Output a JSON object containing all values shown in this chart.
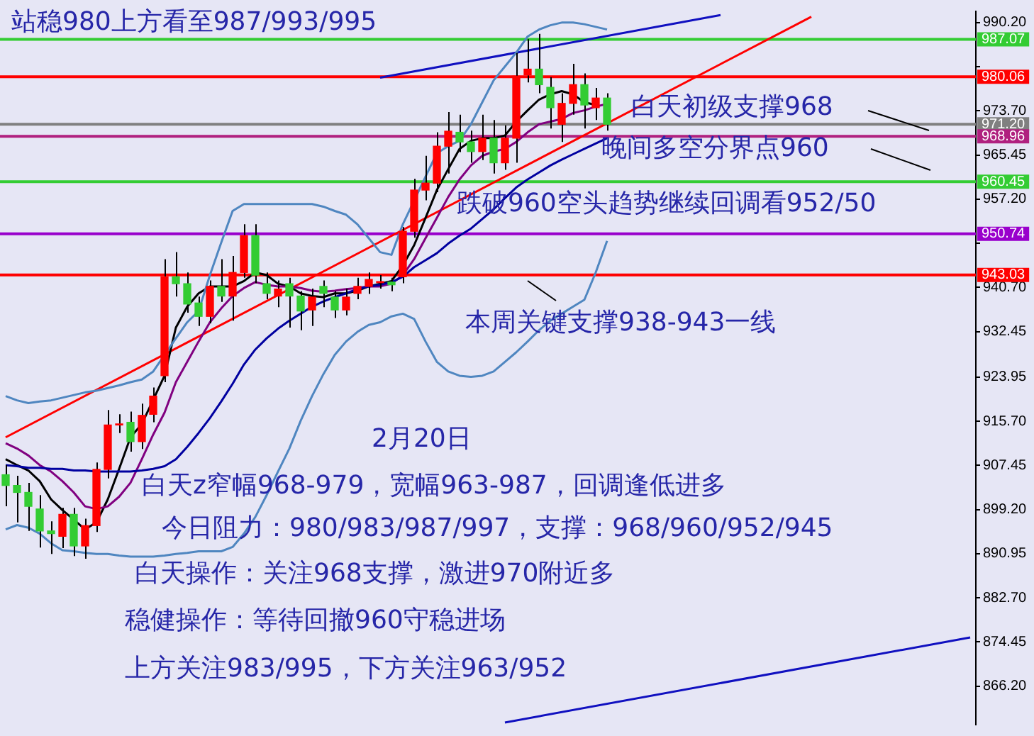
{
  "chart_data": {
    "type": "candlestick",
    "categories": [
      null,
      null,
      null,
      null,
      null,
      null,
      null,
      null,
      null,
      null,
      null,
      null,
      null,
      null,
      null,
      null,
      null,
      null,
      null,
      null,
      null,
      null,
      null,
      null,
      null,
      null,
      null,
      null,
      null,
      null,
      null,
      null,
      null,
      null,
      null,
      null,
      null,
      null,
      null,
      null,
      null,
      null,
      null,
      null,
      null,
      null,
      null,
      null,
      null,
      null,
      null,
      null,
      null,
      null,
      null,
      null,
      null,
      null,
      null,
      null,
      null,
      null,
      null,
      null,
      null,
      null,
      null,
      null,
      null,
      null,
      null,
      null,
      null,
      null,
      null,
      null,
      null,
      null,
      null,
      null,
      null,
      null,
      null,
      null,
      null,
      null
    ],
    "ohlc": [
      [
        905.7,
        907.5,
        899.8,
        903.7
      ],
      [
        903.7,
        905.5,
        896.8,
        902.4
      ],
      [
        902.4,
        904.2,
        895.2,
        899.8
      ],
      [
        899.3,
        901.9,
        892.1,
        895.2
      ],
      [
        895.2,
        897.0,
        890.9,
        894.7
      ],
      [
        894.2,
        899.5,
        892.0,
        898.3
      ],
      [
        898.3,
        899.5,
        890.5,
        892.4
      ],
      [
        892.4,
        897.5,
        890.0,
        896.2
      ],
      [
        896.2,
        908.0,
        895.0,
        906.7
      ],
      [
        906.7,
        917.8,
        905.0,
        915.0
      ],
      [
        915.0,
        917.0,
        913.5,
        915.2
      ],
      [
        915.5,
        917.5,
        910.0,
        911.9
      ],
      [
        911.9,
        919.0,
        910.5,
        916.8
      ],
      [
        917.0,
        922.0,
        915.5,
        920.4
      ],
      [
        924.2,
        946.0,
        923.0,
        942.7
      ],
      [
        942.7,
        947.3,
        939.0,
        941.4
      ],
      [
        941.4,
        943.5,
        936.0,
        937.6
      ],
      [
        937.8,
        939.0,
        933.5,
        935.3
      ],
      [
        935.3,
        942.0,
        934.0,
        940.9
      ],
      [
        940.9,
        946.0,
        938.0,
        939.1
      ],
      [
        939.1,
        946.6,
        934.5,
        943.5
      ],
      [
        943.5,
        952.5,
        942.5,
        950.4
      ],
      [
        950.4,
        952.5,
        941.5,
        943.0
      ],
      [
        941.4,
        943.5,
        938.5,
        939.6
      ],
      [
        939.1,
        942.0,
        937.0,
        940.4
      ],
      [
        941.4,
        942.5,
        933.2,
        939.1
      ],
      [
        939.1,
        940.0,
        932.7,
        936.3
      ],
      [
        936.5,
        940.5,
        933.5,
        938.9
      ],
      [
        940.9,
        942.0,
        937.0,
        939.6
      ],
      [
        938.9,
        940.0,
        935.0,
        936.5
      ],
      [
        936.5,
        940.5,
        935.5,
        938.9
      ],
      [
        939.6,
        942.5,
        938.5,
        940.9
      ],
      [
        940.9,
        943.5,
        939.5,
        942.2
      ],
      [
        941.6,
        943.0,
        940.5,
        941.8
      ],
      [
        941.7,
        942.5,
        940.0,
        941.2
      ],
      [
        942.7,
        952.0,
        941.5,
        951.2
      ],
      [
        951.2,
        961.0,
        950.0,
        958.9
      ],
      [
        958.9,
        965.3,
        957.0,
        960.2
      ],
      [
        960.2,
        969.7,
        958.5,
        967.1
      ],
      [
        967.1,
        973.5,
        962.0,
        969.9
      ],
      [
        969.7,
        973.0,
        966.0,
        967.9
      ],
      [
        967.9,
        970.0,
        964.0,
        966.1
      ],
      [
        966.1,
        973.0,
        964.5,
        968.6
      ],
      [
        968.6,
        972.0,
        962.0,
        964.0
      ],
      [
        964.0,
        971.0,
        962.7,
        968.6
      ],
      [
        968.6,
        984.5,
        964.0,
        980.2
      ],
      [
        980.4,
        987.1,
        979.0,
        981.5
      ],
      [
        981.5,
        988.1,
        977.0,
        978.6
      ],
      [
        978.1,
        980.0,
        970.4,
        974.3
      ],
      [
        971.2,
        977.0,
        967.9,
        975.1
      ],
      [
        975.1,
        982.5,
        973.0,
        978.6
      ],
      [
        978.6,
        980.7,
        970.4,
        974.8
      ],
      [
        974.3,
        978.0,
        972.0,
        976.1
      ],
      [
        976.1,
        977.0,
        970.0,
        971.2
      ],
      null,
      null,
      null,
      null,
      null,
      null,
      null,
      null,
      null,
      null,
      null,
      null,
      null,
      null,
      null,
      null,
      null,
      null,
      null,
      null,
      null,
      null,
      null,
      null,
      null,
      null,
      null,
      null,
      null,
      null,
      null,
      null
    ],
    "colors": [
      "#33cc33",
      "#33cc33",
      "#33cc33",
      "#33cc33",
      "#33cc33",
      "#ff0000",
      "#33cc33",
      "#ff0000",
      "#ff0000",
      "#ff0000",
      "#ff0000",
      "#33cc33",
      "#ff0000",
      "#ff0000",
      "#ff0000",
      "#33cc33",
      "#33cc33",
      "#33cc33",
      "#ff0000",
      "#33cc33",
      "#ff0000",
      "#ff0000",
      "#33cc33",
      "#33cc33",
      "#ff0000",
      "#33cc33",
      "#33cc33",
      "#ff0000",
      "#33cc33",
      "#33cc33",
      "#ff0000",
      "#ff0000",
      "#ff0000",
      "#ff0000",
      "#33cc33",
      "#ff0000",
      "#ff0000",
      "#ff0000",
      "#ff0000",
      "#ff0000",
      "#33cc33",
      "#33cc33",
      "#ff0000",
      "#33cc33",
      "#ff0000",
      "#ff0000",
      "#ff0000",
      "#33cc33",
      "#33cc33",
      "#ff0000",
      "#ff0000",
      "#33cc33",
      "#ff0000",
      "#33cc33",
      null,
      null,
      null,
      null,
      null,
      null,
      null,
      null,
      null,
      null,
      null,
      null,
      null,
      null,
      null,
      null,
      null,
      null,
      null,
      null,
      null,
      null,
      null,
      null,
      null,
      null,
      null,
      null,
      null,
      null,
      null,
      null
    ],
    "series": [
      {
        "type": "line",
        "color": "#4f86c0",
        "values": [
          920.4,
          919.6,
          919.1,
          919.4,
          919.6,
          920.1,
          920.6,
          921.1,
          921.4,
          921.9,
          922.4,
          923.0,
          923.5,
          925.0,
          928.1,
          931.2,
          934.2,
          936.3,
          943.0,
          949.1,
          955.0,
          956.3,
          956.3,
          956.3,
          956.3,
          956.3,
          956.3,
          956.3,
          955.8,
          955.0,
          954.3,
          952.5,
          949.9,
          947.3,
          946.8,
          952.5,
          null,
          961.4,
          965.8,
          967.1,
          968.1,
          971.2,
          975.3,
          979.4,
          982.0,
          984.6,
          987.6,
          988.9,
          989.7,
          990.2,
          990.2,
          989.9,
          989.4,
          988.9,
          null,
          null,
          null,
          null,
          null,
          null,
          null,
          null,
          null,
          null,
          null,
          null,
          null,
          null,
          null,
          null,
          null,
          null,
          null,
          null,
          null,
          null,
          null,
          null,
          null,
          null,
          null,
          null,
          null,
          null,
          null,
          null
        ]
      },
      {
        "type": "line",
        "color": "#4f86c0",
        "values": [
          895.5,
          896.3,
          895.8,
          894.7,
          892.9,
          891.6,
          891.4,
          891.1,
          890.9,
          890.9,
          890.6,
          890.4,
          890.4,
          890.4,
          890.6,
          890.9,
          891.1,
          891.4,
          891.4,
          891.4,
          892.2,
          894.7,
          897.8,
          901.9,
          906.3,
          910.6,
          915.8,
          920.4,
          924.5,
          928.1,
          930.6,
          932.4,
          933.7,
          934.2,
          935.3,
          935.8,
          934.8,
          930.6,
          926.8,
          925.0,
          924.2,
          924.0,
          924.2,
          925.0,
          926.8,
          928.6,
          930.6,
          932.7,
          934.5,
          935.8,
          937.1,
          938.4,
          943.5,
          949.4,
          null,
          null,
          null,
          null,
          null,
          null,
          null,
          null,
          null,
          null,
          null,
          null,
          null,
          null,
          null,
          null,
          null,
          null,
          null,
          null,
          null,
          null,
          null,
          null,
          null,
          null,
          null,
          null,
          null,
          null,
          null,
          null
        ]
      },
      {
        "type": "line",
        "color": "#0000a0",
        "values": [
          907.5,
          907.3,
          907.0,
          907.0,
          906.8,
          906.8,
          906.5,
          906.5,
          906.3,
          906.3,
          906.3,
          906.3,
          906.5,
          906.8,
          907.3,
          908.6,
          910.9,
          913.5,
          916.3,
          919.4,
          922.7,
          926.3,
          929.1,
          931.2,
          933.0,
          934.5,
          935.8,
          937.1,
          938.1,
          938.9,
          939.6,
          940.4,
          940.9,
          941.2,
          941.7,
          942.7,
          944.5,
          945.8,
          947.1,
          948.9,
          950.4,
          951.7,
          953.5,
          955.3,
          957.4,
          959.4,
          960.9,
          962.2,
          963.5,
          964.6,
          965.6,
          966.6,
          967.6,
          968.6,
          null,
          null,
          null,
          null,
          null,
          null,
          null,
          null,
          null,
          null,
          null,
          null,
          null,
          null,
          null,
          null,
          null,
          null,
          null,
          null,
          null,
          null,
          null,
          null,
          null,
          null,
          null,
          null,
          null,
          null,
          null,
          null
        ]
      },
      {
        "type": "line",
        "color": "#800080",
        "values": [
          911.6,
          910.6,
          909.3,
          907.5,
          906.3,
          904.5,
          902.4,
          899.8,
          899.3,
          899.8,
          901.6,
          904.2,
          908.6,
          913.2,
          917.3,
          923.0,
          926.8,
          930.6,
          934.2,
          936.8,
          939.1,
          940.6,
          941.7,
          941.2,
          940.9,
          940.9,
          940.6,
          940.1,
          939.9,
          940.1,
          940.4,
          940.6,
          940.9,
          940.9,
          941.4,
          943.0,
          946.0,
          949.9,
          953.7,
          957.6,
          960.9,
          963.5,
          965.3,
          966.1,
          966.6,
          967.9,
          969.7,
          971.2,
          971.7,
          972.2,
          973.3,
          973.8,
          974.5,
          975.0,
          null,
          null,
          null,
          null,
          null,
          null,
          null,
          null,
          null,
          null,
          null,
          null,
          null,
          null,
          null,
          null,
          null,
          null,
          null,
          null,
          null,
          null,
          null,
          null,
          null,
          null,
          null,
          null,
          null,
          null,
          null,
          null
        ]
      },
      {
        "type": "line",
        "color": "#000000",
        "values": [
          908.6,
          907.5,
          906.5,
          904.5,
          901.1,
          899.1,
          897.3,
          895.5,
          896.8,
          901.1,
          906.8,
          912.7,
          915.2,
          null,
          924.2,
          933.2,
          937.1,
          939.6,
          940.9,
          940.9,
          940.9,
          941.9,
          943.5,
          943.0,
          941.4,
          940.9,
          939.6,
          939.1,
          938.9,
          939.6,
          939.6,
          940.1,
          940.9,
          941.4,
          941.9,
          944.8,
          948.6,
          953.7,
          958.9,
          962.8,
          966.6,
          968.1,
          968.6,
          968.6,
          969.1,
          971.7,
          973.8,
          975.8,
          976.8,
          977.4,
          976.8,
          975.3,
          974.8,
          null,
          null,
          null,
          null,
          null,
          null,
          null,
          null,
          null,
          null,
          null,
          null,
          null,
          null,
          null,
          null,
          null,
          null,
          null,
          null,
          null,
          null,
          null,
          null,
          null,
          null,
          null,
          null,
          null,
          null,
          null,
          null,
          null
        ]
      },
      {
        "type": "line",
        "color": "#ff0000",
        "values": [
          912.7,
          null,
          null,
          null,
          null,
          null,
          null,
          null,
          null,
          null,
          null,
          null,
          null,
          null,
          null,
          null,
          null,
          null,
          null,
          null,
          null,
          null,
          null,
          null,
          null,
          null,
          null,
          null,
          null,
          null,
          null,
          null,
          null,
          null,
          null,
          null,
          null,
          null,
          null,
          null,
          null,
          null,
          null,
          null,
          null,
          null,
          null,
          null,
          null,
          null,
          null,
          null,
          null,
          null,
          null,
          null,
          null,
          null,
          null,
          null,
          null,
          null,
          null,
          null,
          null,
          null,
          null,
          null,
          null,
          null,
          null,
          991.3,
          null,
          null,
          null,
          null,
          null,
          null,
          null,
          null,
          null,
          null,
          null,
          null,
          null,
          null
        ]
      },
      {
        "type": "line",
        "color": "#1010c0",
        "values": [
          null,
          null,
          null,
          null,
          null,
          null,
          null,
          null,
          null,
          null,
          null,
          null,
          null,
          null,
          null,
          null,
          null,
          null,
          null,
          null,
          null,
          null,
          null,
          null,
          null,
          null,
          null,
          null,
          null,
          null,
          null,
          null,
          null,
          979.9,
          null,
          null,
          null,
          null,
          null,
          null,
          null,
          null,
          null,
          null,
          null,
          null,
          null,
          null,
          null,
          null,
          null,
          null,
          null,
          null,
          null,
          null,
          null,
          null,
          null,
          null,
          null,
          null,
          null,
          991.6,
          null,
          null,
          null,
          null,
          null,
          null,
          null,
          null,
          null,
          null,
          null,
          null,
          null,
          null,
          null,
          null,
          null,
          null,
          null,
          null,
          null,
          null
        ]
      },
      {
        "type": "line",
        "color": "#1010c0",
        "values": [
          null,
          null,
          null,
          null,
          null,
          null,
          null,
          null,
          null,
          null,
          null,
          null,
          null,
          null,
          null,
          null,
          null,
          null,
          null,
          null,
          null,
          null,
          null,
          null,
          null,
          null,
          null,
          null,
          null,
          null,
          null,
          null,
          null,
          null,
          null,
          null,
          null,
          null,
          null,
          null,
          null,
          null,
          null,
          null,
          859.4,
          null,
          null,
          null,
          null,
          null,
          null,
          null,
          null,
          null,
          null,
          null,
          null,
          null,
          null,
          null,
          null,
          null,
          null,
          null,
          null,
          null,
          null,
          null,
          null,
          null,
          null,
          null,
          null,
          null,
          null,
          null,
          null,
          null,
          null,
          null,
          null,
          null,
          null,
          null,
          null,
          875.3
        ]
      }
    ],
    "ylim": [
      859.0,
      992.3
    ],
    "yticks": [
      {
        "value": 990.2,
        "label": "990.20"
      },
      {
        "value": 981.95,
        "label": null
      },
      {
        "value": 973.7,
        "label": "973.70"
      },
      {
        "value": 965.45,
        "label": "965.45"
      },
      {
        "value": 957.2,
        "label": "957.20"
      },
      {
        "value": 948.95,
        "label": null
      },
      {
        "value": 940.7,
        "label": "940.70"
      },
      {
        "value": 932.45,
        "label": "932.45"
      },
      {
        "value": 923.95,
        "label": "923.95"
      },
      {
        "value": 915.7,
        "label": "915.70"
      },
      {
        "value": 907.45,
        "label": "907.45"
      },
      {
        "value": 899.2,
        "label": "899.20"
      },
      {
        "value": 890.95,
        "label": "890.95"
      },
      {
        "value": 882.7,
        "label": "882.70"
      },
      {
        "value": 874.45,
        "label": "874.45"
      },
      {
        "value": 866.2,
        "label": "866.20"
      }
    ],
    "ref_lines": [
      {
        "axis": "y",
        "value": 987.07,
        "label": "987.07",
        "color": "#33cc33"
      },
      {
        "axis": "y",
        "value": 980.06,
        "label": "980.06",
        "color": "#ff0000"
      },
      {
        "axis": "y",
        "value": 971.2,
        "label": "971.20",
        "color": "#808080"
      },
      {
        "axis": "y",
        "value": 968.96,
        "label": "968.96",
        "color": "#b0207f"
      },
      {
        "axis": "y",
        "value": 960.45,
        "label": "960.45",
        "color": "#33cc33"
      },
      {
        "axis": "y",
        "value": 950.74,
        "label": "950.74",
        "color": "#9900cc"
      },
      {
        "axis": "y",
        "value": 943.03,
        "label": "943.03",
        "color": "#ff0000"
      }
    ],
    "annotations": [
      "站稳980上方看至987/993/995",
      "白天初级支撑968",
      "晚间多空分界点960",
      "跌破960空头趋势继续回调看952/50",
      "本周关键支撑938-943一线",
      "2月20日",
      "白天z窄幅968-979，宽幅963-987，回调逢低进多",
      "今日阻力：980/983/987/997，支撑：968/960/952/945",
      "白天操作：关注968支撑，激进970附近多",
      "稳健操作：等待回撤960守稳进场",
      "上方关注983/995，下方关注963/952"
    ]
  }
}
